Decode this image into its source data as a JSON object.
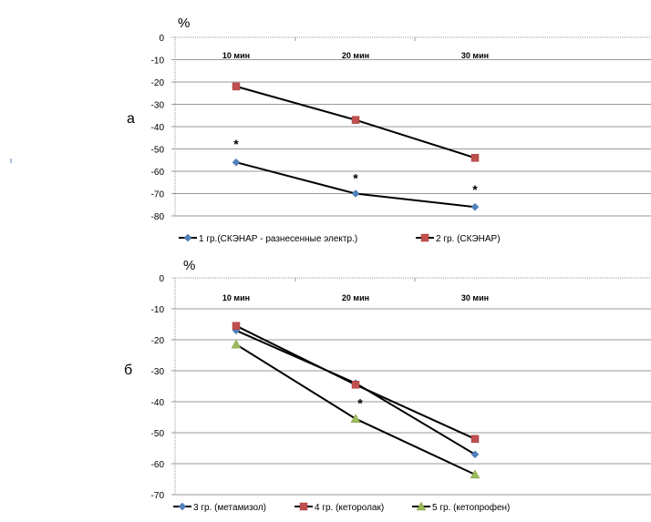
{
  "chart_data": [
    {
      "type": "line",
      "panel_label": "а",
      "ylabel": "%",
      "categories": [
        "10 мин",
        "20 мин",
        "30 мин"
      ],
      "ylim": [
        -80,
        0
      ],
      "yticks": [
        "0",
        "-10",
        "-20",
        "-30",
        "-40",
        "-50",
        "-60",
        "-70",
        "-80"
      ],
      "grid": true,
      "legend_position": "bottom",
      "series": [
        {
          "name": "1 гр.(СКЭНАР - разнесенные  электр.)",
          "values": [
            -56,
            -70,
            -76
          ],
          "marker": "diamond",
          "color": "#4f81bd",
          "significance": [
            "*",
            "*",
            "*"
          ]
        },
        {
          "name": "2 гр. (СКЭНАР)",
          "values": [
            -22,
            -37,
            -54
          ],
          "marker": "square",
          "color": "#c0504d",
          "significance": [
            "",
            "",
            ""
          ]
        }
      ]
    },
    {
      "type": "line",
      "panel_label": "б",
      "ylabel": "%",
      "categories": [
        "10 мин",
        "20 мин",
        "30 мин"
      ],
      "ylim": [
        -70,
        0
      ],
      "yticks": [
        "0",
        "-10",
        "-20",
        "-30",
        "-40",
        "-50",
        "-60",
        "-70"
      ],
      "grid": true,
      "legend_position": "bottom",
      "series": [
        {
          "name": "3 гр. (метамизол)",
          "values": [
            -17,
            -34,
            -57
          ],
          "marker": "diamond",
          "color": "#4f81bd",
          "significance": [
            "",
            "",
            ""
          ]
        },
        {
          "name": "4 гр. (кеторолак)",
          "values": [
            -15.5,
            -34.5,
            -52
          ],
          "marker": "square",
          "color": "#c0504d",
          "significance": [
            "",
            "",
            ""
          ]
        },
        {
          "name": "5 гр. (кетопрофен)",
          "values": [
            -21.5,
            -45.5,
            -63.5
          ],
          "marker": "triangle",
          "color": "#9bbb59",
          "significance": [
            "",
            "*",
            ""
          ]
        }
      ]
    }
  ]
}
